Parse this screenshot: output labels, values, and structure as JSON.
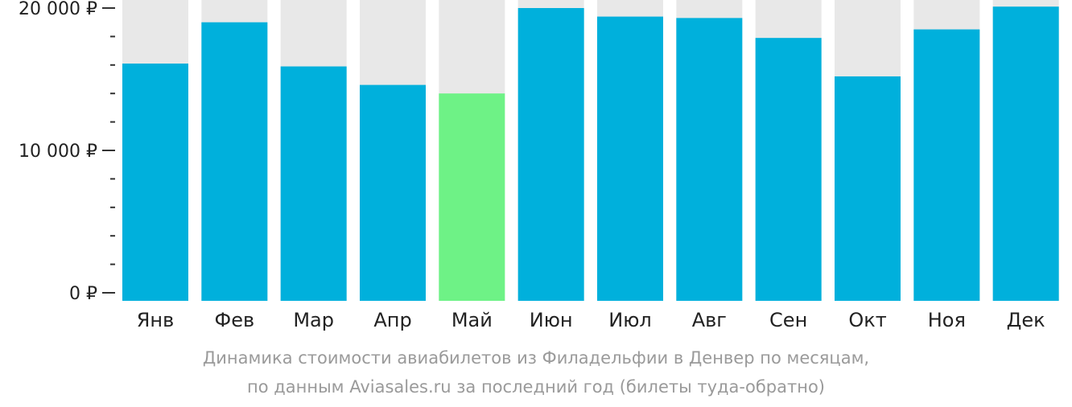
{
  "chart_data": {
    "type": "bar",
    "categories": [
      "Янв",
      "Фев",
      "Мар",
      "Апр",
      "Май",
      "Июн",
      "Июл",
      "Авг",
      "Сен",
      "Окт",
      "Ноя",
      "Дек"
    ],
    "values": [
      16100,
      19000,
      15900,
      14600,
      14000,
      20000,
      19400,
      19300,
      17900,
      15200,
      18500,
      20100
    ],
    "highlight_index": 4,
    "ylim": [
      0,
      20800
    ],
    "yticks": [
      {
        "value": 0,
        "label": "0 ₽"
      },
      {
        "value": 10000,
        "label": "10 000 ₽"
      },
      {
        "value": 20000,
        "label": "20 000 ₽"
      }
    ],
    "minor_tick_step": 2000,
    "colors": {
      "bar": "#00b0dc",
      "highlight": "#6ef286",
      "background_bar": "#e8e8e8",
      "axis_text": "#222222",
      "caption": "#9a9a9a"
    }
  },
  "caption": {
    "line1": "Динамика стоимости авиабилетов из Филадельфии в Денвер по месяцам,",
    "line2": "по данным Aviasales.ru за последний год (билеты туда-обратно)"
  }
}
